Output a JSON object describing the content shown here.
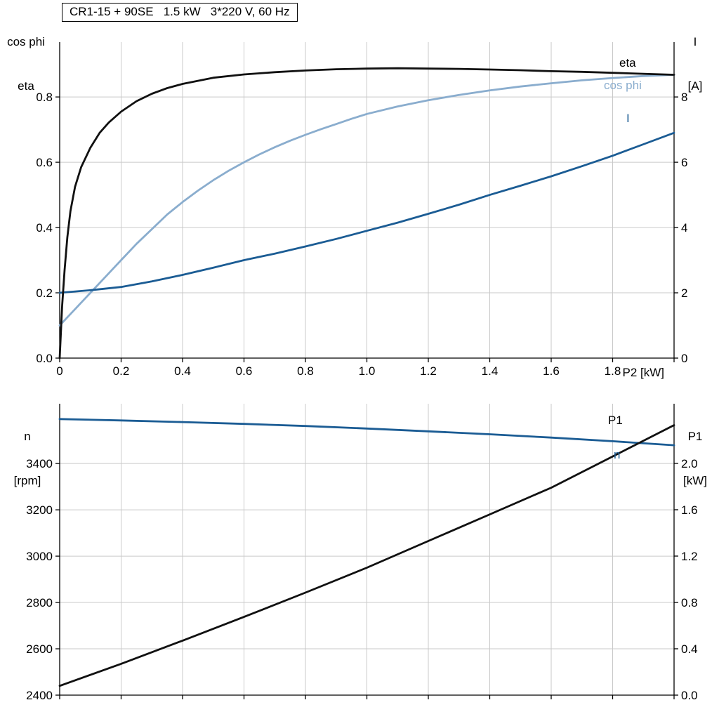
{
  "colors": {
    "curve_black": "#111111",
    "dark_blue": "#1b5c94",
    "light_blue": "#8aadce",
    "grid": "#c9c9c9",
    "axis": "#000000"
  },
  "chart_data": [
    {
      "type": "line",
      "panel": "top",
      "title": "CR1-15 + 90SE   1.5 kW   3*220 V, 60 Hz",
      "x": {
        "label": "P2 [kW]",
        "min": 0,
        "max": 2.0,
        "ticks": [
          {
            "v": 0,
            "label": "0"
          },
          {
            "v": 0.2,
            "label": "0.2"
          },
          {
            "v": 0.4,
            "label": "0.4"
          },
          {
            "v": 0.6,
            "label": "0.6"
          },
          {
            "v": 0.8,
            "label": "0.8"
          },
          {
            "v": 1.0,
            "label": "1.0"
          },
          {
            "v": 1.2,
            "label": "1.2"
          },
          {
            "v": 1.4,
            "label": "1.4"
          },
          {
            "v": 1.6,
            "label": "1.6"
          },
          {
            "v": 1.8,
            "label": "1.8"
          },
          {
            "v": 2.0,
            "label": ""
          }
        ]
      },
      "left_axis": {
        "label_lines": [
          "cos phi",
          "eta"
        ],
        "range": [
          0,
          0.968
        ],
        "ticks": [
          {
            "v": 0.0,
            "label": "0.0"
          },
          {
            "v": 0.2,
            "label": "0.2"
          },
          {
            "v": 0.4,
            "label": "0.4"
          },
          {
            "v": 0.6,
            "label": "0.6"
          },
          {
            "v": 0.8,
            "label": "0.8"
          }
        ]
      },
      "right_axis": {
        "label_lines": [
          "I",
          "[A]"
        ],
        "range": [
          0,
          9.68
        ],
        "ticks": [
          {
            "v": 0,
            "label": "0"
          },
          {
            "v": 2,
            "label": "2"
          },
          {
            "v": 4,
            "label": "4"
          },
          {
            "v": 6,
            "label": "6"
          },
          {
            "v": 8,
            "label": "8"
          }
        ]
      },
      "series": [
        {
          "name": "cos phi",
          "axis": "left",
          "color": "light_blue",
          "points": [
            [
              0,
              0.1
            ],
            [
              0.05,
              0.15
            ],
            [
              0.1,
              0.2
            ],
            [
              0.15,
              0.25
            ],
            [
              0.2,
              0.3
            ],
            [
              0.25,
              0.35
            ],
            [
              0.3,
              0.395
            ],
            [
              0.35,
              0.44
            ],
            [
              0.4,
              0.478
            ],
            [
              0.45,
              0.513
            ],
            [
              0.5,
              0.545
            ],
            [
              0.55,
              0.574
            ],
            [
              0.6,
              0.6
            ],
            [
              0.65,
              0.624
            ],
            [
              0.7,
              0.646
            ],
            [
              0.75,
              0.666
            ],
            [
              0.8,
              0.684
            ],
            [
              0.85,
              0.701
            ],
            [
              0.9,
              0.717
            ],
            [
              0.95,
              0.733
            ],
            [
              1.0,
              0.748
            ],
            [
              1.1,
              0.771
            ],
            [
              1.2,
              0.79
            ],
            [
              1.3,
              0.806
            ],
            [
              1.4,
              0.82
            ],
            [
              1.5,
              0.832
            ],
            [
              1.6,
              0.842
            ],
            [
              1.7,
              0.851
            ],
            [
              1.8,
              0.858
            ],
            [
              1.9,
              0.864
            ],
            [
              2.0,
              0.868
            ]
          ]
        },
        {
          "name": "I",
          "axis": "right",
          "color": "dark_blue",
          "points": [
            [
              0,
              2.0
            ],
            [
              0.1,
              2.08
            ],
            [
              0.2,
              2.18
            ],
            [
              0.3,
              2.35
            ],
            [
              0.4,
              2.55
            ],
            [
              0.5,
              2.77
            ],
            [
              0.6,
              3.0
            ],
            [
              0.7,
              3.2
            ],
            [
              0.8,
              3.42
            ],
            [
              0.9,
              3.65
            ],
            [
              1.0,
              3.9
            ],
            [
              1.1,
              4.15
            ],
            [
              1.2,
              4.42
            ],
            [
              1.3,
              4.7
            ],
            [
              1.4,
              5.0
            ],
            [
              1.5,
              5.28
            ],
            [
              1.6,
              5.57
            ],
            [
              1.7,
              5.88
            ],
            [
              1.8,
              6.2
            ],
            [
              1.9,
              6.55
            ],
            [
              2.0,
              6.9
            ]
          ]
        },
        {
          "name": "eta",
          "axis": "left",
          "color": "curve_black",
          "points": [
            [
              0,
              0
            ],
            [
              0.008,
              0.16
            ],
            [
              0.016,
              0.27
            ],
            [
              0.025,
              0.37
            ],
            [
              0.035,
              0.45
            ],
            [
              0.05,
              0.525
            ],
            [
              0.07,
              0.585
            ],
            [
              0.1,
              0.645
            ],
            [
              0.13,
              0.69
            ],
            [
              0.16,
              0.722
            ],
            [
              0.2,
              0.755
            ],
            [
              0.25,
              0.787
            ],
            [
              0.3,
              0.81
            ],
            [
              0.35,
              0.827
            ],
            [
              0.4,
              0.84
            ],
            [
              0.5,
              0.859
            ],
            [
              0.6,
              0.869
            ],
            [
              0.7,
              0.876
            ],
            [
              0.8,
              0.881
            ],
            [
              0.9,
              0.885
            ],
            [
              1.0,
              0.887
            ],
            [
              1.1,
              0.888
            ],
            [
              1.2,
              0.887
            ],
            [
              1.3,
              0.886
            ],
            [
              1.4,
              0.884
            ],
            [
              1.5,
              0.882
            ],
            [
              1.6,
              0.879
            ],
            [
              1.7,
              0.877
            ],
            [
              1.8,
              0.874
            ],
            [
              1.9,
              0.871
            ],
            [
              2.0,
              0.868
            ]
          ]
        }
      ]
    },
    {
      "type": "line",
      "panel": "bottom",
      "x": {
        "label": "",
        "min": 0,
        "max": 2.0,
        "ticks": [
          {
            "v": 0,
            "label": ""
          },
          {
            "v": 0.2,
            "label": ""
          },
          {
            "v": 0.4,
            "label": ""
          },
          {
            "v": 0.6,
            "label": ""
          },
          {
            "v": 0.8,
            "label": ""
          },
          {
            "v": 1.0,
            "label": ""
          },
          {
            "v": 1.2,
            "label": ""
          },
          {
            "v": 1.4,
            "label": ""
          },
          {
            "v": 1.6,
            "label": ""
          },
          {
            "v": 1.8,
            "label": ""
          },
          {
            "v": 2.0,
            "label": ""
          }
        ]
      },
      "left_axis": {
        "label_lines": [
          "n",
          "[rpm]"
        ],
        "range": [
          2400,
          3658
        ],
        "ticks": [
          {
            "v": 2400,
            "label": "2400"
          },
          {
            "v": 2600,
            "label": "2600"
          },
          {
            "v": 2800,
            "label": "2800"
          },
          {
            "v": 3000,
            "label": "3000"
          },
          {
            "v": 3200,
            "label": "3200"
          },
          {
            "v": 3400,
            "label": "3400"
          }
        ]
      },
      "right_axis": {
        "label_lines": [
          "P1",
          "[kW]"
        ],
        "range": [
          0,
          2.515
        ],
        "ticks": [
          {
            "v": 0.0,
            "label": "0.0"
          },
          {
            "v": 0.4,
            "label": "0.4"
          },
          {
            "v": 0.8,
            "label": "0.8"
          },
          {
            "v": 1.2,
            "label": "1.2"
          },
          {
            "v": 1.6,
            "label": "1.6"
          },
          {
            "v": 2.0,
            "label": "2.0"
          }
        ]
      },
      "series": [
        {
          "name": "n",
          "axis": "left",
          "color": "dark_blue",
          "points": [
            [
              0,
              3592
            ],
            [
              0.2,
              3586
            ],
            [
              0.4,
              3579
            ],
            [
              0.6,
              3571
            ],
            [
              0.8,
              3562
            ],
            [
              1.0,
              3551
            ],
            [
              1.2,
              3539
            ],
            [
              1.4,
              3526
            ],
            [
              1.6,
              3512
            ],
            [
              1.8,
              3496
            ],
            [
              2.0,
              3479
            ]
          ]
        },
        {
          "name": "P1",
          "axis": "right",
          "color": "curve_black",
          "points": [
            [
              0,
              0.08
            ],
            [
              0.2,
              0.27
            ],
            [
              0.4,
              0.47
            ],
            [
              0.6,
              0.675
            ],
            [
              0.8,
              0.885
            ],
            [
              1.0,
              1.1
            ],
            [
              1.2,
              1.33
            ],
            [
              1.4,
              1.56
            ],
            [
              1.6,
              1.79
            ],
            [
              1.8,
              2.06
            ],
            [
              2.0,
              2.33
            ]
          ]
        }
      ]
    }
  ]
}
